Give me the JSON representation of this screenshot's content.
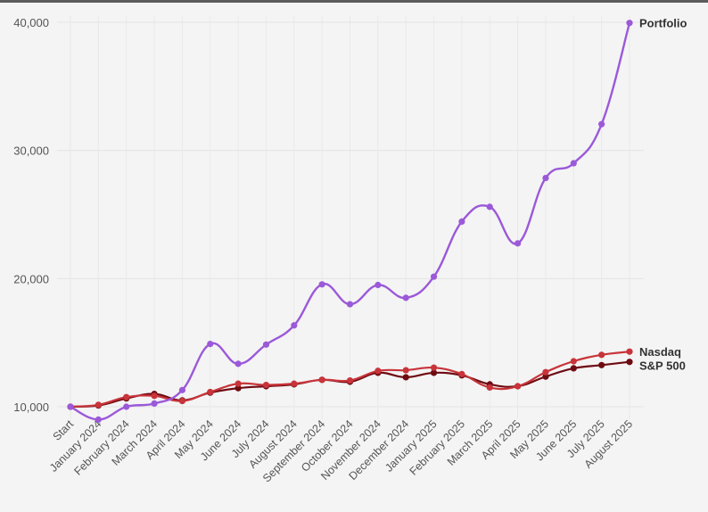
{
  "chart_data": {
    "type": "line",
    "title": "",
    "xlabel": "",
    "ylabel": "",
    "ylim": [
      9000,
      40500
    ],
    "y_ticks": [
      10000,
      20000,
      30000,
      40000
    ],
    "y_tick_labels": [
      "10,000",
      "20,000",
      "30,000",
      "40,000"
    ],
    "categories": [
      "Start",
      "January 2024",
      "February 2024",
      "March 2024",
      "April 2024",
      "May 2024",
      "June 2024",
      "July 2024",
      "August 2024",
      "September 2024",
      "October 2024",
      "November 2024",
      "December 2024",
      "January 2025",
      "February 2025",
      "March 2025",
      "April 2025",
      "May 2025",
      "June 2025",
      "July 2025",
      "August 2025"
    ],
    "grid": true,
    "legend": "end-of-line labels",
    "series": [
      {
        "name": "Portfolio",
        "color": "#9b59d9",
        "values": [
          10000,
          9000,
          10000,
          10250,
          11300,
          14900,
          13350,
          14850,
          16350,
          19550,
          18000,
          19500,
          18500,
          20150,
          24450,
          25600,
          22750,
          27850,
          29000,
          32050,
          39950
        ]
      },
      {
        "name": "Nasdaq",
        "color": "#c8343a",
        "values": [
          10000,
          10150,
          10750,
          10850,
          10450,
          11150,
          11800,
          11700,
          11800,
          12100,
          12050,
          12800,
          12850,
          13050,
          12550,
          11500,
          11600,
          12700,
          13550,
          14050,
          14300
        ]
      },
      {
        "name": "S&P 500",
        "color": "#6e0b12",
        "values": [
          10000,
          10100,
          10650,
          11000,
          10500,
          11100,
          11450,
          11600,
          11750,
          12100,
          11950,
          12650,
          12300,
          12650,
          12450,
          11750,
          11600,
          12350,
          13000,
          13250,
          13500
        ]
      }
    ]
  }
}
